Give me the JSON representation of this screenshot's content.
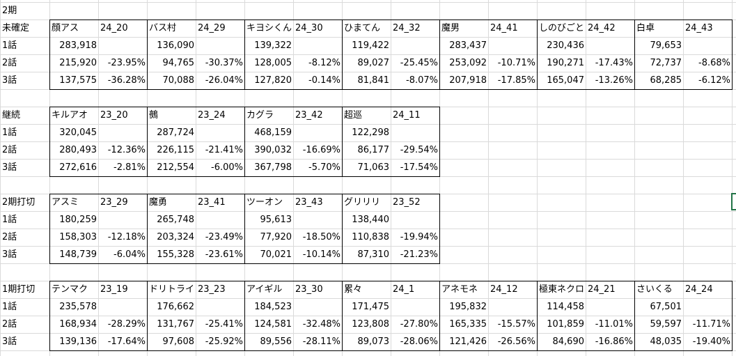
{
  "title_cell": "2期",
  "selection_marker": "#217346",
  "blocks": [
    {
      "label": "未確定",
      "rows": [
        "1話",
        "2話",
        "3話"
      ],
      "shows": [
        {
          "name": "顔アス",
          "code": "24_20",
          "values": [
            "283,918",
            "215,920",
            "137,575"
          ],
          "diffs": [
            "",
            "-23.95%",
            "-36.28%"
          ]
        },
        {
          "name": "バス村",
          "code": "24_29",
          "values": [
            "136,090",
            "94,765",
            "70,088"
          ],
          "diffs": [
            "",
            "-30.37%",
            "-26.04%"
          ]
        },
        {
          "name": "キヨシくん",
          "code": "24_30",
          "values": [
            "139,322",
            "128,005",
            "127,820"
          ],
          "diffs": [
            "",
            "-8.12%",
            "-0.14%"
          ]
        },
        {
          "name": "ひまてん",
          "code": "24_32",
          "values": [
            "119,422",
            "89,027",
            "81,841"
          ],
          "diffs": [
            "",
            "-25.45%",
            "-8.07%"
          ]
        },
        {
          "name": "魔男",
          "code": "24_41",
          "values": [
            "283,437",
            "253,092",
            "207,918"
          ],
          "diffs": [
            "",
            "-10.71%",
            "-17.85%"
          ]
        },
        {
          "name": "しのびごと",
          "code": "24_42",
          "values": [
            "230,436",
            "190,271",
            "165,047"
          ],
          "diffs": [
            "",
            "-17.43%",
            "-13.26%"
          ]
        },
        {
          "name": "白卓",
          "code": "24_43",
          "values": [
            "79,653",
            "72,737",
            "68,285"
          ],
          "diffs": [
            "",
            "-8.68%",
            "-6.12%"
          ]
        }
      ]
    },
    {
      "label": "継続",
      "rows": [
        "1話",
        "2話",
        "3話"
      ],
      "shows": [
        {
          "name": "キルアオ",
          "code": "23_20",
          "values": [
            "320,045",
            "280,493",
            "272,616"
          ],
          "diffs": [
            "",
            "-12.36%",
            "-2.81%"
          ]
        },
        {
          "name": "鵺",
          "code": "23_24",
          "values": [
            "287,724",
            "226,115",
            "212,554"
          ],
          "diffs": [
            "",
            "-21.41%",
            "-6.00%"
          ]
        },
        {
          "name": "カグラ",
          "code": "23_42",
          "values": [
            "468,159",
            "390,032",
            "367,798"
          ],
          "diffs": [
            "",
            "-16.69%",
            "-5.70%"
          ]
        },
        {
          "name": "超巡",
          "code": "24_11",
          "values": [
            "122,298",
            "86,177",
            "71,063"
          ],
          "diffs": [
            "",
            "-29.54%",
            "-17.54%"
          ]
        }
      ]
    },
    {
      "label": "2期打切",
      "rows": [
        "1話",
        "2話",
        "3話"
      ],
      "shows": [
        {
          "name": "アスミ",
          "code": "23_29",
          "values": [
            "180,259",
            "158,303",
            "148,739"
          ],
          "diffs": [
            "",
            "-12.18%",
            "-6.04%"
          ]
        },
        {
          "name": "魔勇",
          "code": "23_41",
          "values": [
            "265,748",
            "203,324",
            "155,328"
          ],
          "diffs": [
            "",
            "-23.49%",
            "-23.61%"
          ]
        },
        {
          "name": "ツーオン",
          "code": "23_43",
          "values": [
            "95,613",
            "77,920",
            "70,021"
          ],
          "diffs": [
            "",
            "-18.50%",
            "-10.14%"
          ]
        },
        {
          "name": "グリリリ",
          "code": "23_52",
          "values": [
            "138,440",
            "110,838",
            "87,310"
          ],
          "diffs": [
            "",
            "-19.94%",
            "-21.23%"
          ]
        }
      ]
    },
    {
      "label": "1期打切",
      "rows": [
        "1話",
        "2話",
        "3話"
      ],
      "shows": [
        {
          "name": "テンマク",
          "code": "23_19",
          "values": [
            "235,578",
            "168,934",
            "139,136"
          ],
          "diffs": [
            "",
            "-28.29%",
            "-17.64%"
          ]
        },
        {
          "name": "ドリトライ",
          "code": "23_23",
          "values": [
            "176,662",
            "131,767",
            "97,608"
          ],
          "diffs": [
            "",
            "-25.41%",
            "-25.92%"
          ]
        },
        {
          "name": "アイギル",
          "code": "23_30",
          "values": [
            "184,523",
            "124,581",
            "89,556"
          ],
          "diffs": [
            "",
            "-32.48%",
            "-28.11%"
          ]
        },
        {
          "name": "累々",
          "code": "24_1",
          "values": [
            "171,475",
            "123,808",
            "89,073"
          ],
          "diffs": [
            "",
            "-27.80%",
            "-28.06%"
          ]
        },
        {
          "name": "アネモネ",
          "code": "24_12",
          "values": [
            "195,832",
            "165,335",
            "121,426"
          ],
          "diffs": [
            "",
            "-15.57%",
            "-26.56%"
          ]
        },
        {
          "name": "極東ネクロ",
          "code": "24_21",
          "values": [
            "114,458",
            "101,859",
            "84,690"
          ],
          "diffs": [
            "",
            "-11.01%",
            "-16.86%"
          ]
        },
        {
          "name": "さいくる",
          "code": "24_24",
          "values": [
            "67,501",
            "59,597",
            "48,035"
          ],
          "diffs": [
            "",
            "-11.71%",
            "-19.40%"
          ]
        }
      ]
    }
  ]
}
